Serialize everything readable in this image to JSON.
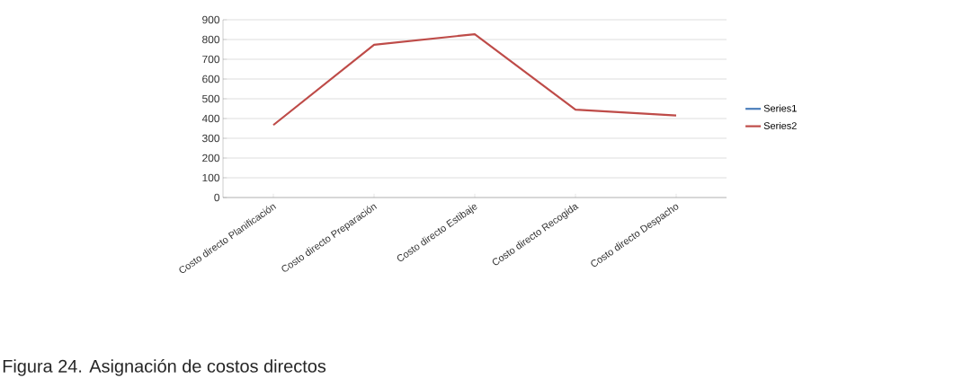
{
  "chart_data": {
    "type": "line",
    "categories": [
      "Costo directo Planificación",
      "Costo directo Preparación",
      "Costo directo Estibaje",
      "Costo directo Recogida",
      "Costo directo Despacho"
    ],
    "series": [
      {
        "name": "Series1",
        "color": "#4a7ebb",
        "values": [
          null,
          null,
          null,
          null,
          null
        ]
      },
      {
        "name": "Series2",
        "color": "#be4b48",
        "values": [
          367,
          773,
          827,
          445,
          415
        ]
      }
    ],
    "ylim": [
      0,
      900
    ],
    "yticks": [
      0,
      100,
      200,
      300,
      400,
      500,
      600,
      700,
      800,
      900
    ],
    "grid": "y",
    "legend": "right",
    "marker": "none",
    "line_style": "solid",
    "annotations": [
      "Figura 24. Asignación de costos directos"
    ]
  }
}
